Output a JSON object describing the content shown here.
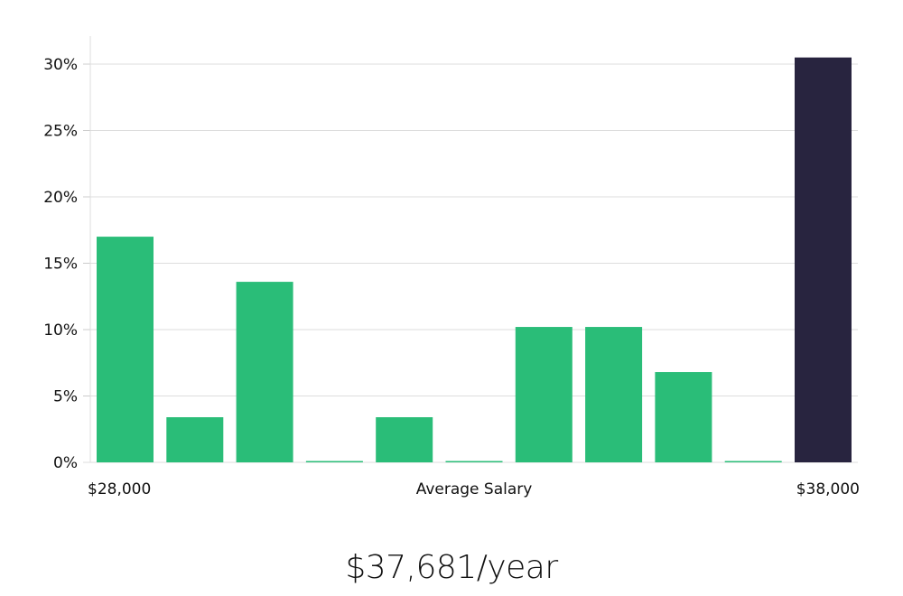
{
  "chart_data": {
    "type": "bar",
    "categories": [
      "1",
      "2",
      "3",
      "4",
      "5",
      "6",
      "7",
      "8",
      "9",
      "10",
      "11"
    ],
    "values": [
      17.0,
      3.4,
      13.6,
      0,
      3.4,
      0,
      10.2,
      10.2,
      6.8,
      0,
      30.5
    ],
    "highlight_index": 10,
    "ylim": [
      0,
      32
    ],
    "yticks": [
      0,
      5,
      10,
      15,
      20,
      25,
      30
    ],
    "ytick_labels": [
      "0%",
      "5%",
      "10%",
      "15%",
      "20%",
      "25%",
      "30%"
    ],
    "xlabel": "Average Salary",
    "x_min_label": "$28,000",
    "x_max_label": "$38,000",
    "grid": true,
    "colors": {
      "bar": "#2abd78",
      "highlight": "#28243f",
      "grid": "#dddddd"
    }
  },
  "summary": {
    "salary": "$37,681/year"
  }
}
